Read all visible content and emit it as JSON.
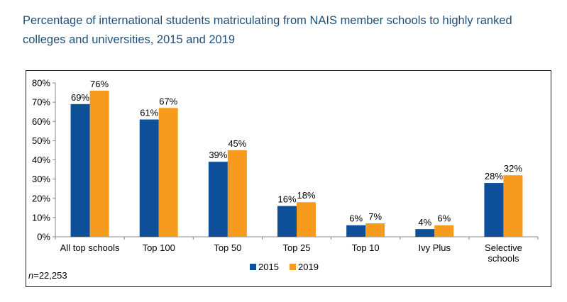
{
  "title": "Percentage of international students matriculating from NAIS member schools to highly ranked colleges and universities, 2015 and 2019",
  "note": {
    "n_label": "n",
    "n_value": "=22,253"
  },
  "colors": {
    "2015": "#0d4f99",
    "2019": "#f79b1e",
    "title": "#1f4e79"
  },
  "chart_data": {
    "type": "bar",
    "title": "Percentage of international students matriculating from NAIS member schools to highly ranked colleges and universities, 2015 and 2019",
    "xlabel": "",
    "ylabel": "",
    "ylim": [
      0,
      80
    ],
    "yticks": [
      "0%",
      "10%",
      "20%",
      "30%",
      "40%",
      "50%",
      "60%",
      "70%",
      "80%"
    ],
    "categories": [
      [
        "All top schools"
      ],
      [
        "Top 100"
      ],
      [
        "Top 50"
      ],
      [
        "Top 25"
      ],
      [
        "Top 10"
      ],
      [
        "Ivy Plus"
      ],
      [
        "Selective",
        "schools"
      ]
    ],
    "series": [
      {
        "name": "2015",
        "values": [
          69,
          61,
          39,
          16,
          6,
          4,
          28
        ],
        "labels": [
          "69%",
          "61%",
          "39%",
          "16%",
          "6%",
          "4%",
          "28%"
        ]
      },
      {
        "name": "2019",
        "values": [
          76,
          67,
          45,
          18,
          7,
          6,
          32
        ],
        "labels": [
          "76%",
          "67%",
          "45%",
          "18%",
          "7%",
          "6%",
          "32%"
        ]
      }
    ],
    "legend": "bottom-center",
    "grid": false
  }
}
